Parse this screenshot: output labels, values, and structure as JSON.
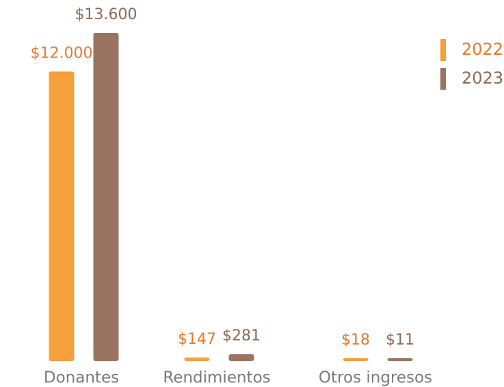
{
  "chart_data": {
    "type": "bar",
    "categories": [
      "Donantes",
      "Rendimientos",
      "Otros ingresos"
    ],
    "series": [
      {
        "name": "2022",
        "color": "#f5a03c",
        "values": [
          12000,
          147,
          18
        ],
        "value_labels": [
          "$12.000",
          "$147",
          "$18"
        ]
      },
      {
        "name": "2023",
        "color": "#9a7460",
        "values": [
          13600,
          281,
          11
        ],
        "value_labels": [
          "$13.600",
          "$281",
          "$11"
        ]
      }
    ],
    "legend": "top-right"
  }
}
